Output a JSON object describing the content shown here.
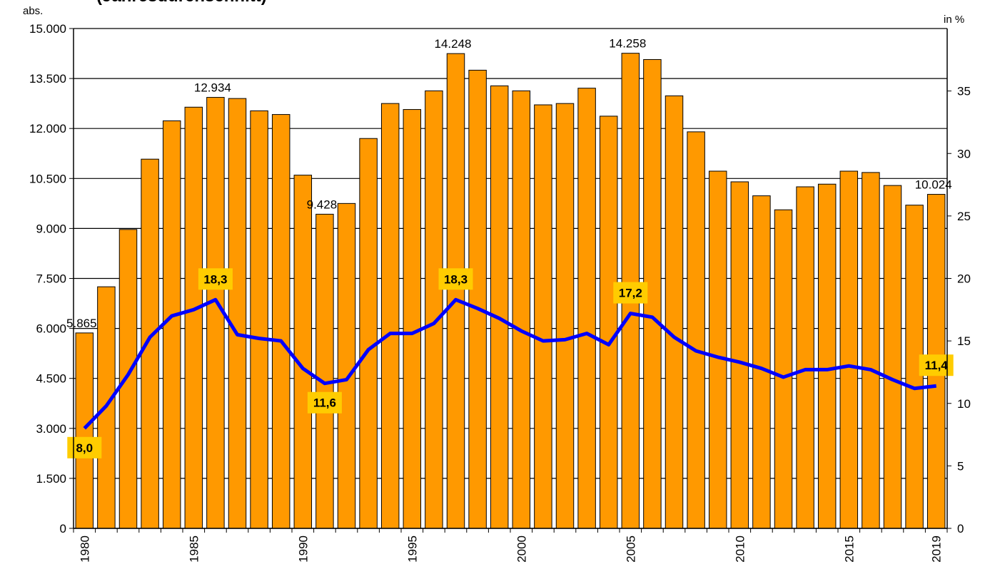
{
  "chart_data": {
    "type": "bar",
    "title": "(Jahresdurchschnitt)",
    "ylabel": "abs.",
    "y2label": "in %",
    "categories": [
      "1980",
      null,
      null,
      null,
      null,
      "1985",
      null,
      null,
      null,
      null,
      "1990",
      null,
      null,
      null,
      null,
      "1995",
      null,
      null,
      null,
      null,
      "2000",
      null,
      null,
      null,
      null,
      "2005",
      null,
      null,
      null,
      null,
      "2010",
      null,
      null,
      null,
      null,
      "2015",
      null,
      null,
      null,
      "2019"
    ],
    "series": [
      {
        "type": "bar",
        "color": "#ff9900",
        "values": [
          5865,
          7250,
          8970,
          11080,
          12230,
          12640,
          12934,
          12900,
          12530,
          12420,
          10600,
          9428,
          9750,
          11700,
          12750,
          12570,
          13130,
          14248,
          13750,
          13280,
          13130,
          12710,
          12750,
          13210,
          12370,
          14258,
          14070,
          12980,
          11900,
          10720,
          10400,
          9980,
          9560,
          10250,
          10330,
          10720,
          10680,
          10290,
          9700,
          10024
        ],
        "value_labels": [
          "5.865",
          null,
          null,
          null,
          null,
          null,
          "12.934",
          null,
          null,
          null,
          null,
          "9.428",
          null,
          null,
          null,
          null,
          null,
          "14.248",
          null,
          null,
          null,
          null,
          null,
          null,
          null,
          "14.258",
          null,
          null,
          null,
          null,
          null,
          null,
          null,
          null,
          null,
          null,
          null,
          null,
          null,
          "10.024"
        ]
      },
      {
        "type": "line",
        "color": "#0000ff",
        "axis": "y2",
        "values": [
          8.0,
          9.8,
          12.3,
          15.3,
          17.0,
          17.5,
          18.3,
          15.5,
          15.2,
          15.0,
          12.8,
          11.6,
          11.9,
          14.3,
          15.6,
          15.6,
          16.4,
          18.3,
          17.6,
          16.8,
          15.8,
          15.0,
          15.1,
          15.6,
          14.7,
          17.2,
          16.9,
          15.3,
          14.2,
          13.7,
          13.3,
          12.8,
          12.1,
          12.7,
          12.7,
          13.0,
          12.7,
          11.9,
          11.2,
          11.4
        ],
        "value_labels": [
          "8,0",
          null,
          null,
          null,
          null,
          null,
          "18,3",
          null,
          null,
          null,
          null,
          "11,6",
          null,
          null,
          null,
          null,
          null,
          "18,3",
          null,
          null,
          null,
          null,
          null,
          null,
          null,
          "17,2",
          null,
          null,
          null,
          null,
          null,
          null,
          null,
          null,
          null,
          null,
          null,
          null,
          null,
          "11,4"
        ]
      }
    ],
    "ylim": [
      0,
      15000
    ],
    "yticks": [
      0,
      {
        "value": 1500,
        "label": "1.500"
      },
      {
        "value": 3000,
        "label": "3.000"
      },
      {
        "value": 4500,
        "label": "4.500"
      },
      {
        "value": 6000,
        "label": "6.000"
      },
      {
        "value": 7500,
        "label": "7.500"
      },
      {
        "value": 9000,
        "label": "9.000"
      },
      {
        "value": 10500,
        "label": "10.500"
      },
      {
        "value": 12000,
        "label": "12.000"
      },
      {
        "value": 13500,
        "label": "13.500"
      },
      {
        "value": 15000,
        "label": "15.000"
      }
    ],
    "y2lim": [
      0,
      40
    ],
    "y2ticks": [
      0,
      5,
      10,
      15,
      20,
      25,
      30,
      35
    ],
    "grid": true
  }
}
